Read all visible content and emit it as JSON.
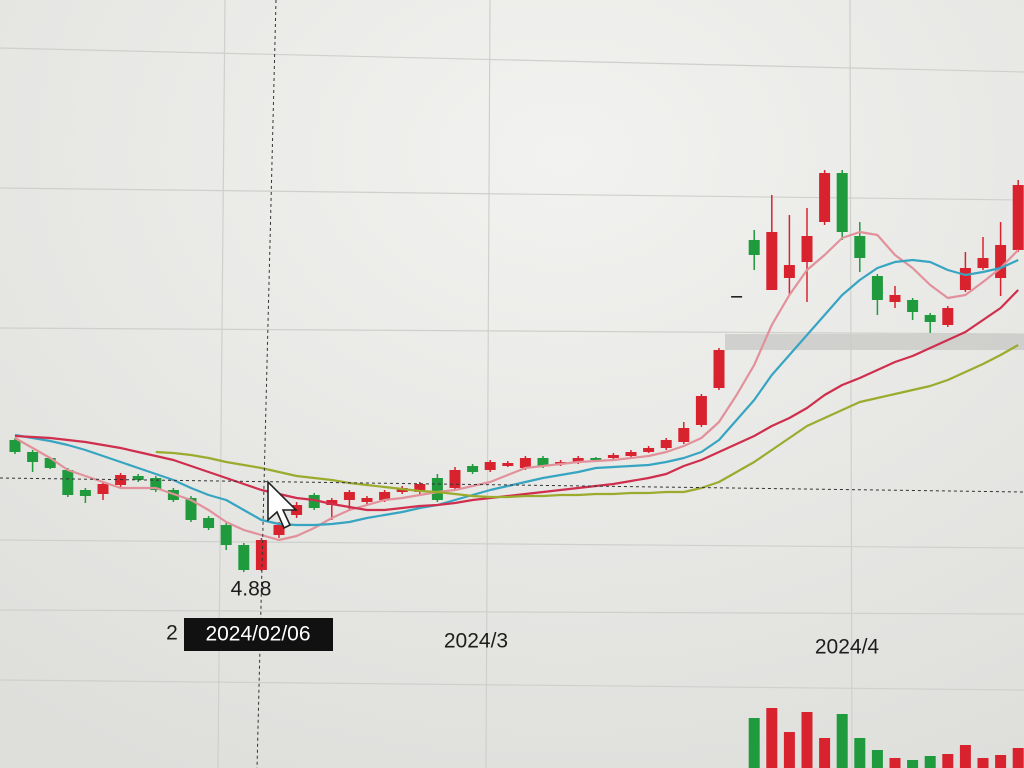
{
  "chart_data": {
    "type": "candlestick",
    "open": [
      6.2,
      6.08,
      6.02,
      5.9,
      5.7,
      5.66,
      5.75,
      5.84,
      5.82,
      5.7,
      5.62,
      5.42,
      5.35,
      5.15,
      4.9,
      5.25,
      5.45,
      5.65,
      5.55,
      5.6,
      5.58,
      5.6,
      5.68,
      5.68,
      5.82,
      5.72,
      5.94,
      5.9,
      5.94,
      5.92,
      6.02,
      5.96,
      5.98,
      6.02,
      6.02,
      6.04,
      6.08,
      6.12,
      6.18,
      6.35,
      6.72,
      7.64,
      8.2,
      7.7,
      7.82,
      7.98,
      8.38,
      8.87,
      8.24,
      7.84,
      7.58,
      7.6,
      7.45,
      7.35,
      7.7,
      7.92,
      7.82,
      8.1
    ],
    "high": [
      6.22,
      6.1,
      6.03,
      5.92,
      5.72,
      5.78,
      5.87,
      5.86,
      5.84,
      5.72,
      5.64,
      5.44,
      5.37,
      5.17,
      5.22,
      5.38,
      5.58,
      5.67,
      5.62,
      5.7,
      5.64,
      5.7,
      5.74,
      5.78,
      5.86,
      5.93,
      5.96,
      6.0,
      5.99,
      6.04,
      6.04,
      6.0,
      6.04,
      6.03,
      6.07,
      6.1,
      6.14,
      6.22,
      6.38,
      6.66,
      7.12,
      7.64,
      8.3,
      8.65,
      8.45,
      8.52,
      8.9,
      8.9,
      8.38,
      7.86,
      7.74,
      7.62,
      7.47,
      7.54,
      8.08,
      8.23,
      8.38,
      8.8
    ],
    "low": [
      6.06,
      5.88,
      5.91,
      5.63,
      5.57,
      5.6,
      5.73,
      5.78,
      5.68,
      5.58,
      5.38,
      5.3,
      5.1,
      4.88,
      4.89,
      5.22,
      5.42,
      5.5,
      5.4,
      5.5,
      5.55,
      5.58,
      5.66,
      5.66,
      5.58,
      5.7,
      5.86,
      5.88,
      5.93,
      5.9,
      5.92,
      5.94,
      5.96,
      5.99,
      6.01,
      6.03,
      6.07,
      6.1,
      6.16,
      6.33,
      6.7,
      7.64,
      7.9,
      7.7,
      7.65,
      7.58,
      8.35,
      8.2,
      7.88,
      7.45,
      7.52,
      7.4,
      7.27,
      7.33,
      7.68,
      7.9,
      7.64,
      8.08
    ],
    "close": [
      6.08,
      5.98,
      5.92,
      5.65,
      5.64,
      5.76,
      5.85,
      5.8,
      5.7,
      5.6,
      5.4,
      5.32,
      5.15,
      4.9,
      5.2,
      5.35,
      5.55,
      5.52,
      5.6,
      5.68,
      5.62,
      5.68,
      5.72,
      5.76,
      5.6,
      5.9,
      5.88,
      5.98,
      5.97,
      6.02,
      5.94,
      5.98,
      6.02,
      6.0,
      6.05,
      6.08,
      6.12,
      6.2,
      6.32,
      6.64,
      7.1,
      7.64,
      8.05,
      8.28,
      7.95,
      8.24,
      8.87,
      8.28,
      8.02,
      7.6,
      7.65,
      7.48,
      7.38,
      7.52,
      7.92,
      8.02,
      8.15,
      8.75
    ],
    "up_color": "#d8232f",
    "down_color": "#1f9a3c",
    "lines": [
      {
        "color": "#e2919b",
        "values": [
          6.22,
          6.12,
          6.02,
          5.9,
          5.84,
          5.78,
          5.72,
          5.72,
          5.72,
          5.66,
          5.6,
          5.5,
          5.38,
          5.3,
          5.25,
          5.2,
          5.24,
          5.32,
          5.42,
          5.5,
          5.55,
          5.6,
          5.62,
          5.65,
          5.68,
          5.7,
          5.74,
          5.78,
          5.85,
          5.92,
          5.94,
          5.96,
          5.98,
          5.99,
          6.0,
          6.02,
          6.04,
          6.08,
          6.14,
          6.22,
          6.38,
          6.65,
          6.95,
          7.35,
          7.65,
          7.9,
          8.05,
          8.22,
          8.28,
          8.25,
          8.05,
          7.92,
          7.75,
          7.62,
          7.65,
          7.78,
          7.92,
          8.1
        ]
      },
      {
        "color": "#37a5c2",
        "values": [
          6.25,
          6.22,
          6.19,
          6.15,
          6.1,
          6.04,
          5.98,
          5.92,
          5.86,
          5.8,
          5.72,
          5.65,
          5.6,
          5.5,
          5.4,
          5.36,
          5.35,
          5.35,
          5.36,
          5.38,
          5.42,
          5.45,
          5.48,
          5.52,
          5.55,
          5.6,
          5.65,
          5.7,
          5.74,
          5.78,
          5.82,
          5.85,
          5.88,
          5.92,
          5.93,
          5.94,
          5.95,
          5.98,
          6.02,
          6.08,
          6.2,
          6.4,
          6.6,
          6.85,
          7.05,
          7.25,
          7.45,
          7.65,
          7.8,
          7.92,
          7.98,
          8.0,
          7.98,
          7.9,
          7.85,
          7.88,
          7.92,
          8.0
        ]
      },
      {
        "color": "#cf2e4c",
        "values": [
          6.24,
          6.23,
          6.22,
          6.2,
          6.18,
          6.15,
          6.12,
          6.08,
          6.04,
          6.0,
          5.94,
          5.88,
          5.82,
          5.76,
          5.7,
          5.66,
          5.62,
          5.6,
          5.56,
          5.53,
          5.5,
          5.5,
          5.52,
          5.54,
          5.55,
          5.57,
          5.6,
          5.62,
          5.64,
          5.66,
          5.68,
          5.7,
          5.72,
          5.74,
          5.76,
          5.79,
          5.82,
          5.86,
          5.94,
          6.0,
          6.08,
          6.16,
          6.24,
          6.34,
          6.42,
          6.52,
          6.65,
          6.75,
          6.82,
          6.9,
          6.98,
          7.04,
          7.12,
          7.2,
          7.28,
          7.4,
          7.52,
          7.7
        ]
      },
      {
        "color": "#9bab2e",
        "values": [
          null,
          null,
          null,
          null,
          null,
          null,
          null,
          null,
          6.08,
          6.07,
          6.05,
          6.02,
          5.98,
          5.95,
          5.92,
          5.88,
          5.84,
          5.82,
          5.8,
          5.77,
          5.75,
          5.73,
          5.71,
          5.69,
          5.68,
          5.66,
          5.64,
          5.63,
          5.63,
          5.64,
          5.64,
          5.65,
          5.65,
          5.66,
          5.66,
          5.67,
          5.67,
          5.68,
          5.68,
          5.72,
          5.78,
          5.88,
          5.98,
          6.1,
          6.22,
          6.34,
          6.42,
          6.5,
          6.58,
          6.62,
          6.66,
          6.7,
          6.74,
          6.8,
          6.88,
          6.96,
          7.05,
          7.15
        ]
      }
    ],
    "ylim": [
      3.8,
      10.6
    ],
    "volume": [
      null,
      null,
      null,
      null,
      null,
      null,
      null,
      null,
      null,
      null,
      null,
      null,
      null,
      null,
      null,
      null,
      null,
      null,
      null,
      null,
      null,
      null,
      null,
      null,
      null,
      null,
      null,
      null,
      null,
      null,
      null,
      null,
      null,
      null,
      null,
      null,
      null,
      null,
      null,
      null,
      null,
      null,
      50,
      60,
      36,
      56,
      30,
      54,
      30,
      18,
      10,
      8,
      12,
      14,
      23,
      10,
      13,
      20
    ],
    "vlim": [
      0,
      100
    ],
    "axis_labels": [
      "2",
      "2024/3",
      "2024/4"
    ],
    "cursor_date": "2024/02/06"
  }
}
